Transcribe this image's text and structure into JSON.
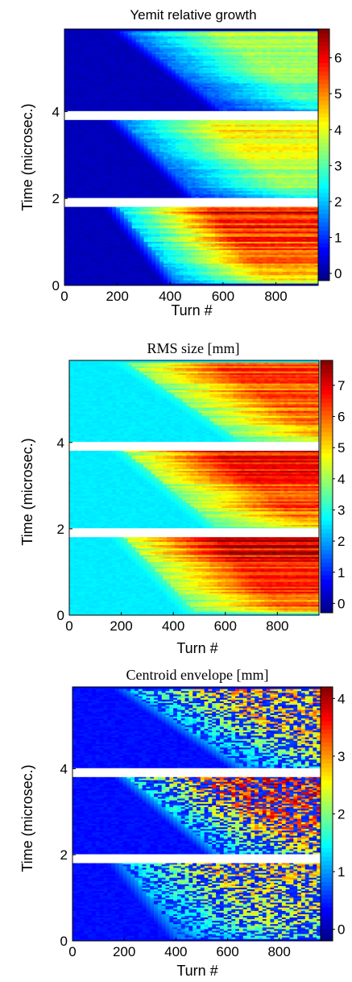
{
  "chart_data": [
    {
      "type": "heatmap",
      "title": "Yemit relative growth",
      "title_style": "sans",
      "xlabel": "Turn #",
      "ylabel": "Time (microsec.)",
      "xlim": [
        0,
        960
      ],
      "ylim": [
        0,
        5.9
      ],
      "x_ticks": [
        0,
        200,
        400,
        600,
        800
      ],
      "y_ticks": [
        0,
        2,
        4
      ],
      "colorbar": {
        "range": [
          -0.2,
          6.8
        ],
        "ticks": [
          0,
          1,
          2,
          3,
          4,
          5,
          6
        ]
      },
      "gaps_time": [
        1.9,
        3.9
      ],
      "bunches": [
        {
          "t_start": 0.05,
          "t_end": 1.82,
          "onset_turn_low": 420,
          "onset_turn_high": 190,
          "peak": 6.2,
          "base": 0.2,
          "growth": 3.0
        },
        {
          "t_start": 2.02,
          "t_end": 3.82,
          "onset_turn_low": 500,
          "onset_turn_high": 200,
          "peak": 4.4,
          "base": 0.2,
          "growth": 2.6
        },
        {
          "t_start": 4.02,
          "t_end": 5.85,
          "onset_turn_low": 600,
          "onset_turn_high": 220,
          "peak": 3.8,
          "base": 0.2,
          "growth": 2.2
        }
      ]
    },
    {
      "type": "heatmap",
      "title": "RMS size [mm]",
      "title_style": "serif",
      "xlabel": "Turn #",
      "ylabel": "Time (microsec.)",
      "xlim": [
        0,
        960
      ],
      "ylim": [
        0,
        5.9
      ],
      "x_ticks": [
        0,
        200,
        400,
        600,
        800
      ],
      "y_ticks": [
        0,
        2,
        4
      ],
      "colorbar": {
        "range": [
          -0.3,
          7.8
        ],
        "ticks": [
          0,
          1,
          2,
          3,
          4,
          5,
          6,
          7
        ]
      },
      "gaps_time": [
        1.9,
        3.9
      ],
      "bunches": [
        {
          "t_start": 0.05,
          "t_end": 1.82,
          "onset_turn_low": 480,
          "onset_turn_high": 200,
          "peak": 7.3,
          "base": 2.6,
          "growth": 4.0
        },
        {
          "t_start": 2.02,
          "t_end": 3.82,
          "onset_turn_low": 560,
          "onset_turn_high": 200,
          "peak": 7.0,
          "base": 2.6,
          "growth": 3.8
        },
        {
          "t_start": 4.02,
          "t_end": 5.85,
          "onset_turn_low": 650,
          "onset_turn_high": 210,
          "peak": 6.6,
          "base": 2.6,
          "growth": 3.6
        }
      ]
    },
    {
      "type": "heatmap",
      "title": "Centroid envelope [mm]",
      "title_style": "serif",
      "xlabel": "Turn #",
      "ylabel": "Time (microsec.)",
      "xlim": [
        0,
        960
      ],
      "ylim": [
        0,
        5.9
      ],
      "x_ticks": [
        0,
        200,
        400,
        600,
        800
      ],
      "y_ticks": [
        0,
        2,
        4
      ],
      "colorbar": {
        "range": [
          -0.2,
          4.2
        ],
        "ticks": [
          0,
          1,
          2,
          3,
          4
        ]
      },
      "gaps_time": [
        1.9,
        3.9
      ],
      "bunches": [
        {
          "t_start": 0.05,
          "t_end": 1.82,
          "onset_turn_low": 420,
          "onset_turn_high": 180,
          "peak": 2.6,
          "base": 0.4,
          "growth": 1.6
        },
        {
          "t_start": 2.02,
          "t_end": 3.82,
          "onset_turn_low": 560,
          "onset_turn_high": 200,
          "peak": 3.4,
          "base": 0.4,
          "growth": 1.8
        },
        {
          "t_start": 4.02,
          "t_end": 5.85,
          "onset_turn_low": 650,
          "onset_turn_high": 200,
          "peak": 2.8,
          "base": 0.4,
          "growth": 1.6
        }
      ]
    }
  ]
}
